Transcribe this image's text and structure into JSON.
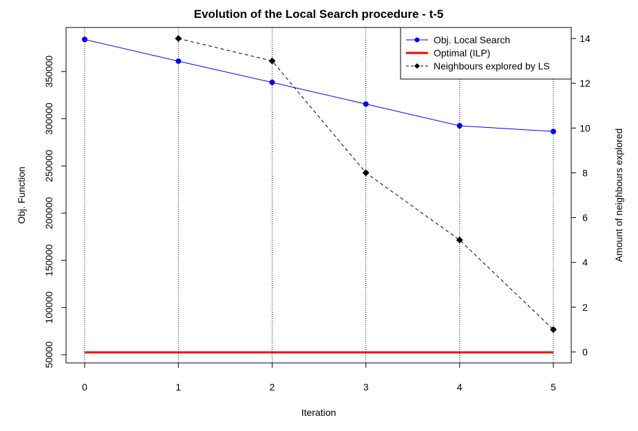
{
  "chart_data": {
    "type": "line",
    "title": "Evolution of the Local Search procedure - t-5",
    "xlabel": "Iteration",
    "ylabel": "Obj. Function",
    "y2label": "Amount of neighbours explored",
    "x": [
      0,
      1,
      2,
      3,
      4,
      5
    ],
    "xlim": [
      0,
      5
    ],
    "ylim": [
      50000,
      385000
    ],
    "y2lim": [
      0,
      14
    ],
    "x_ticks": [
      "0",
      "1",
      "2",
      "3",
      "4",
      "5"
    ],
    "y_ticks": [
      "50000",
      "100000",
      "150000",
      "200000",
      "250000",
      "300000",
      "350000"
    ],
    "y2_ticks": [
      "0",
      "2",
      "4",
      "6",
      "8",
      "10",
      "12",
      "14"
    ],
    "legend_position": "top-right",
    "vertical_gridlines_at_x": true,
    "series": [
      {
        "name": "Obj. Local Search",
        "axis": "left",
        "color": "#0000ff",
        "style": "solid-with-circles",
        "x": [
          0,
          1,
          2,
          3,
          4,
          5
        ],
        "values": [
          384000,
          361000,
          338500,
          315500,
          292500,
          286500
        ]
      },
      {
        "name": "Optimal (ILP)",
        "axis": "left",
        "color": "#ff0000",
        "style": "thick-solid",
        "x": [
          0,
          1,
          2,
          3,
          4,
          5
        ],
        "values": [
          52500,
          52500,
          52500,
          52500,
          52500,
          52500
        ]
      },
      {
        "name": "Neighbours explored by LS",
        "axis": "right",
        "color": "#000000",
        "style": "dashed-with-diamonds",
        "x": [
          1,
          2,
          3,
          4,
          5
        ],
        "values": [
          14,
          13,
          8,
          5,
          1
        ]
      }
    ]
  }
}
